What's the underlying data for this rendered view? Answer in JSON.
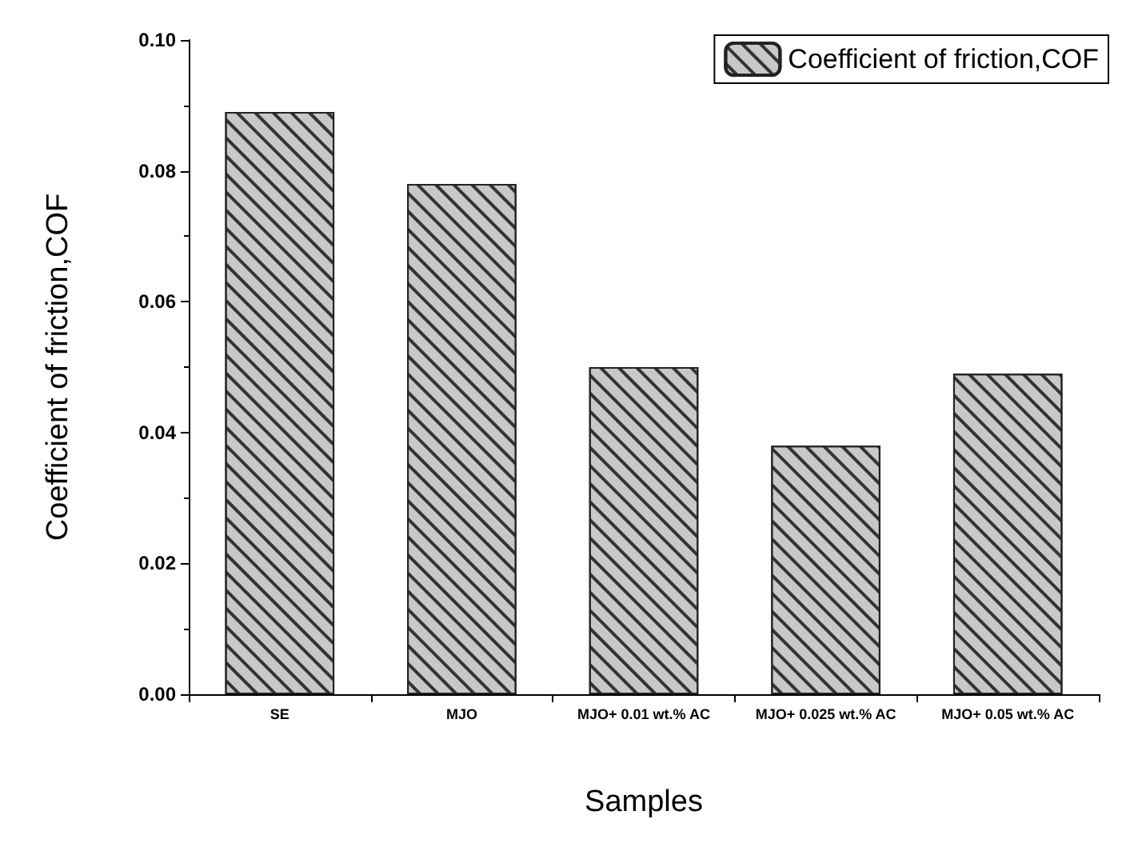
{
  "chart_data": {
    "type": "bar",
    "xlabel": "Samples",
    "ylabel": "Coefficient of friction,COF",
    "categories": [
      "SE",
      "MJO",
      "MJO+ 0.01 wt.% AC",
      "MJO+ 0.025 wt.% AC",
      "MJO+ 0.05 wt.% AC"
    ],
    "series": [
      {
        "name": "Coefficient of friction,COF",
        "color": "#c8c8c8",
        "values": [
          0.089,
          0.078,
          0.05,
          0.038,
          0.049
        ]
      }
    ],
    "ylim": [
      0,
      0.1
    ],
    "yticks": [
      {
        "value": 0,
        "label": "0.00"
      },
      0.02,
      0.04,
      0.06,
      0.08,
      {
        "value": 0.1,
        "label": "0.10"
      }
    ],
    "legend": "top right",
    "grid": false
  }
}
